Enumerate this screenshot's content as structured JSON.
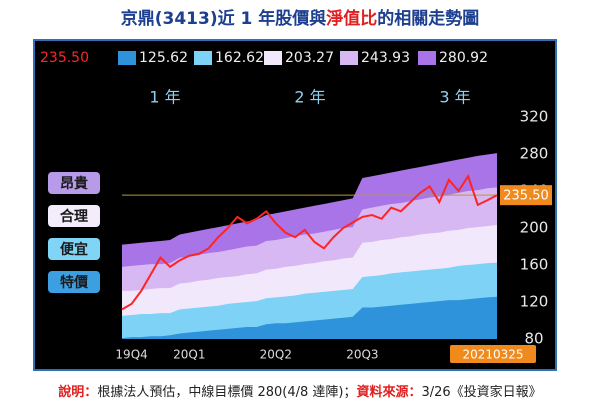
{
  "title_parts": [
    {
      "text": "京鼎(3413)近 1 年股價與",
      "color": "#1d3f8f"
    },
    {
      "text": "淨值比",
      "color": "#e02020"
    },
    {
      "text": "的相關走勢圖",
      "color": "#1d3f8f"
    }
  ],
  "chart_data": {
    "type": "band-line",
    "categories": [
      null,
      "19Q4",
      null,
      null,
      null,
      null,
      null,
      "20Q1",
      null,
      null,
      null,
      null,
      null,
      null,
      null,
      null,
      "20Q2",
      null,
      null,
      null,
      null,
      null,
      null,
      null,
      null,
      "20Q3",
      null,
      null,
      null,
      null,
      null,
      null,
      null,
      null,
      null,
      null,
      null,
      null,
      null,
      "20210325"
    ],
    "series": [
      {
        "name": "235.50",
        "kind": "line",
        "color": "#ff2424",
        "values": [
          112,
          118,
          132,
          150,
          168,
          158,
          165,
          170,
          172,
          178,
          190,
          200,
          212,
          205,
          210,
          218,
          205,
          195,
          190,
          198,
          185,
          178,
          190,
          200,
          206,
          212,
          214,
          210,
          222,
          218,
          228,
          238,
          245,
          228,
          252,
          240,
          256,
          225,
          230,
          235.5
        ]
      },
      {
        "name": "125.62",
        "kind": "band",
        "color": "#2f93dc",
        "values": [
          81,
          82,
          82,
          83,
          83,
          84,
          86,
          87,
          88,
          89,
          90,
          91,
          92,
          93,
          93,
          96,
          97,
          97,
          98,
          99,
          100,
          101,
          102,
          103,
          104,
          114,
          114,
          115,
          116,
          117,
          118,
          119,
          120,
          121,
          122,
          122,
          123,
          124,
          125,
          125.62
        ]
      },
      {
        "name": "162.62",
        "kind": "band",
        "color": "#7dd2f6",
        "values": [
          105,
          106,
          107,
          107,
          108,
          108,
          112,
          113,
          114,
          115,
          116,
          118,
          119,
          120,
          121,
          124,
          125,
          126,
          127,
          129,
          130,
          131,
          132,
          133,
          134,
          147,
          148,
          149,
          151,
          152,
          153,
          154,
          155,
          156,
          157,
          159,
          160,
          161,
          162,
          162.62
        ]
      },
      {
        "name": "203.27",
        "kind": "band",
        "color": "#f1e9fb",
        "values": [
          132,
          132,
          133,
          134,
          135,
          135,
          140,
          141,
          143,
          144,
          146,
          147,
          148,
          150,
          151,
          155,
          156,
          158,
          159,
          161,
          162,
          164,
          165,
          167,
          168,
          184,
          185,
          187,
          188,
          190,
          191,
          193,
          194,
          195,
          197,
          198,
          200,
          201,
          202,
          203.27
        ]
      },
      {
        "name": "243.93",
        "kind": "band",
        "color": "#d8b8f3",
        "values": [
          158,
          159,
          160,
          161,
          161,
          162,
          168,
          169,
          171,
          173,
          174,
          176,
          178,
          180,
          181,
          186,
          187,
          189,
          191,
          193,
          194,
          196,
          198,
          200,
          201,
          220,
          222,
          224,
          226,
          227,
          229,
          231,
          233,
          234,
          236,
          238,
          240,
          241,
          243,
          243.93
        ]
      },
      {
        "name": "280.92",
        "kind": "band",
        "color": "#a874e8",
        "values": [
          182,
          183,
          184,
          185,
          186,
          187,
          193,
          195,
          197,
          199,
          201,
          203,
          205,
          207,
          209,
          214,
          216,
          218,
          220,
          222,
          224,
          226,
          228,
          230,
          232,
          254,
          256,
          258,
          260,
          262,
          264,
          266,
          268,
          270,
          272,
          274,
          276,
          278,
          279.5,
          280.92
        ]
      }
    ],
    "ylim": [
      80,
      320
    ],
    "yticks": [
      80,
      120,
      160,
      200,
      240,
      280,
      320
    ],
    "grid": false,
    "periods": [
      "1 年",
      "2 年",
      "3 年"
    ],
    "zones": [
      {
        "label": "昂貴",
        "color": "#b79ae8"
      },
      {
        "label": "合理",
        "color": "#f2ecfb"
      },
      {
        "label": "便宜",
        "color": "#80d4f6"
      },
      {
        "label": "特價",
        "color": "#3c9fe2"
      }
    ]
  },
  "footnote_parts": [
    {
      "text": "說明：",
      "color": "#e02020"
    },
    {
      "text": "根據法人預估，中線目標價 280(4/8 達陣)；",
      "color": "#222222"
    },
    {
      "text": "資料來源：",
      "color": "#e02020"
    },
    {
      "text": "3/26《投資家日報》",
      "color": "#222222"
    }
  ]
}
